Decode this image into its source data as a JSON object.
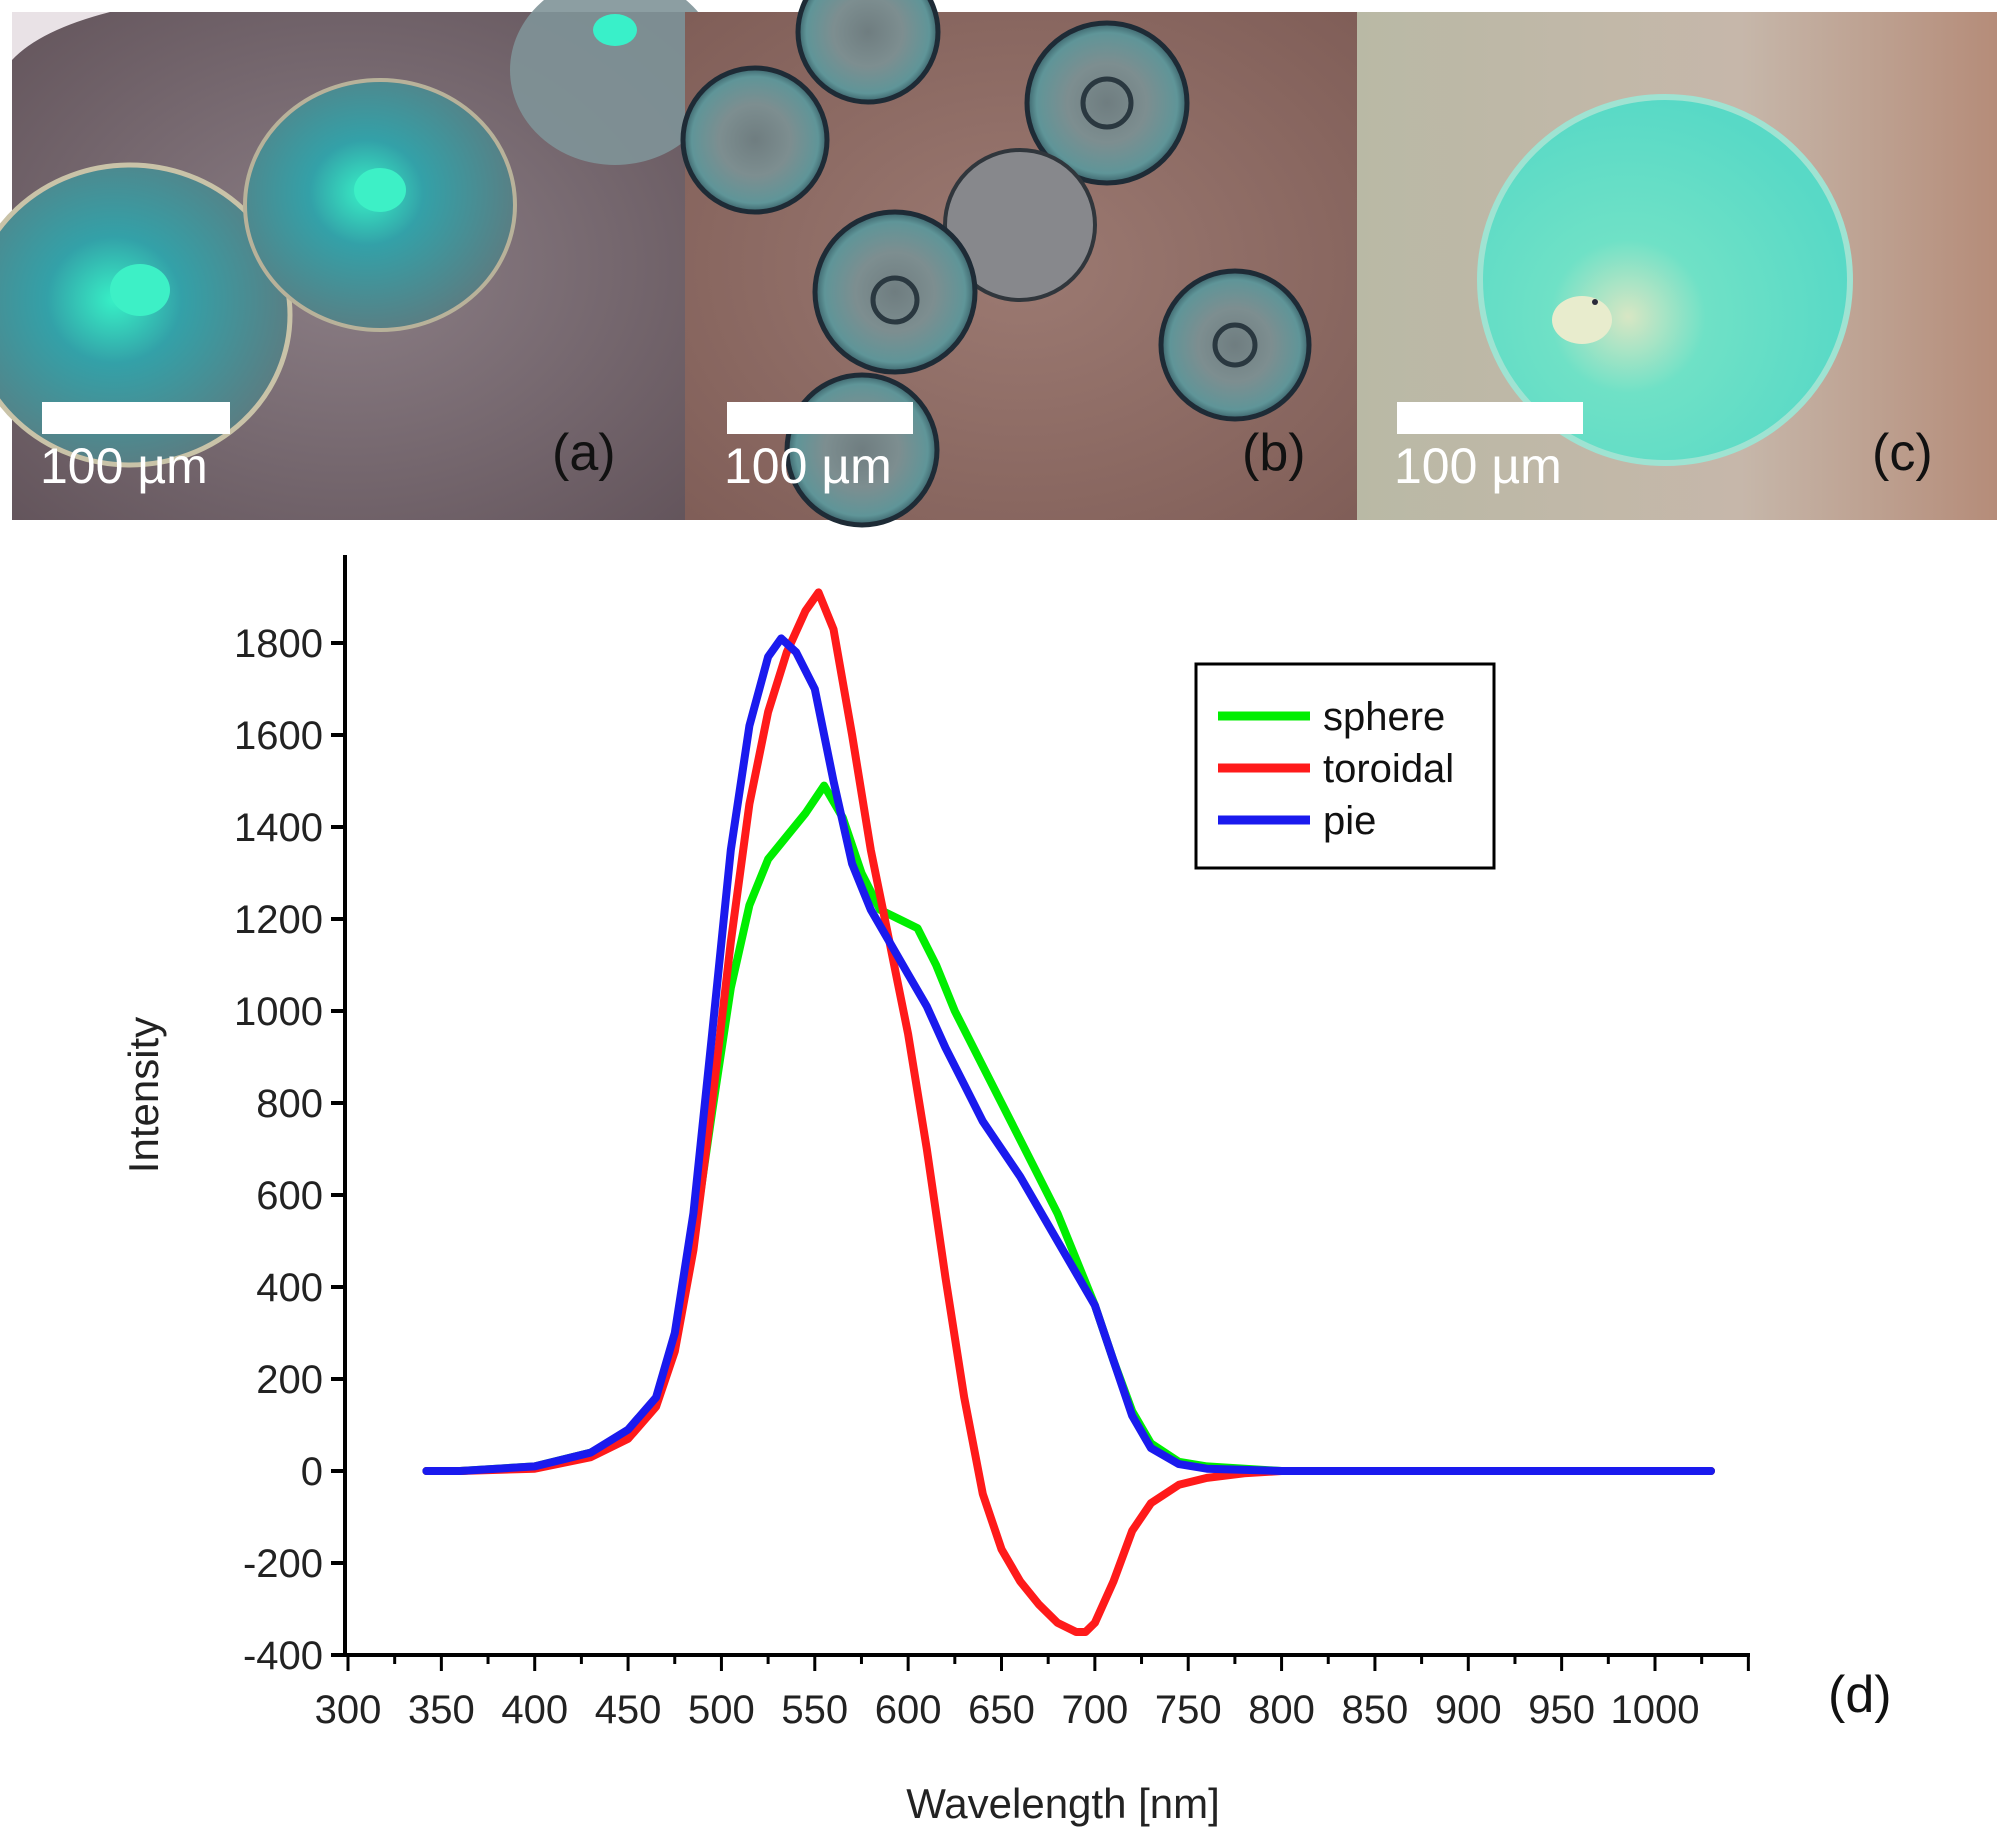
{
  "panels": [
    {
      "id": "a",
      "label": "(a)",
      "scale_label": "100 µm"
    },
    {
      "id": "b",
      "label": "(b)",
      "scale_label": "100 µm"
    },
    {
      "id": "c",
      "label": "(c)",
      "scale_label": "100 µm"
    }
  ],
  "chart_panel_label": "(d)",
  "chart_data": {
    "type": "line",
    "title": "",
    "xlabel": "Wavelength [nm]",
    "ylabel": "Intensity",
    "xlim": [
      300,
      1050
    ],
    "ylim": [
      -400,
      1900
    ],
    "xticks": [
      300,
      350,
      400,
      450,
      500,
      550,
      600,
      650,
      700,
      750,
      800,
      850,
      900,
      950,
      1000
    ],
    "yticks": [
      -400,
      -200,
      0,
      200,
      400,
      600,
      800,
      1000,
      1200,
      1400,
      1600,
      1800
    ],
    "grid": false,
    "legend_position": "top-right",
    "series": [
      {
        "name": "sphere",
        "color": "#00ee00",
        "x": [
          342,
          360,
          400,
          430,
          450,
          465,
          475,
          485,
          495,
          505,
          515,
          525,
          535,
          545,
          555,
          565,
          575,
          585,
          595,
          605,
          615,
          625,
          640,
          660,
          680,
          700,
          710,
          720,
          730,
          745,
          760,
          800,
          900,
          1030
        ],
        "y": [
          0,
          0,
          10,
          40,
          80,
          150,
          280,
          500,
          780,
          1050,
          1230,
          1330,
          1380,
          1430,
          1490,
          1420,
          1300,
          1220,
          1200,
          1180,
          1100,
          1000,
          880,
          720,
          560,
          360,
          240,
          130,
          60,
          20,
          10,
          0,
          0,
          0
        ]
      },
      {
        "name": "toroidal",
        "color": "#ff1a1a",
        "x": [
          342,
          360,
          400,
          430,
          450,
          465,
          475,
          485,
          495,
          505,
          515,
          525,
          535,
          545,
          552,
          560,
          570,
          580,
          590,
          600,
          610,
          620,
          630,
          640,
          650,
          660,
          670,
          680,
          690,
          695,
          700,
          710,
          720,
          730,
          745,
          760,
          780,
          800,
          900,
          1030
        ],
        "y": [
          0,
          0,
          5,
          30,
          70,
          140,
          260,
          480,
          800,
          1150,
          1450,
          1650,
          1780,
          1870,
          1910,
          1830,
          1600,
          1350,
          1150,
          950,
          700,
          420,
          160,
          -50,
          -170,
          -240,
          -290,
          -330,
          -350,
          -350,
          -330,
          -240,
          -130,
          -70,
          -30,
          -15,
          -5,
          0,
          0,
          0
        ]
      },
      {
        "name": "pie",
        "color": "#1a1aee",
        "x": [
          342,
          360,
          400,
          430,
          450,
          465,
          475,
          485,
          495,
          505,
          515,
          525,
          532,
          540,
          550,
          560,
          570,
          580,
          590,
          600,
          610,
          620,
          630,
          640,
          660,
          680,
          700,
          710,
          720,
          730,
          745,
          760,
          800,
          900,
          1030
        ],
        "y": [
          0,
          0,
          10,
          40,
          90,
          160,
          300,
          560,
          950,
          1350,
          1620,
          1770,
          1810,
          1780,
          1700,
          1500,
          1320,
          1220,
          1150,
          1080,
          1010,
          920,
          840,
          760,
          640,
          500,
          360,
          240,
          120,
          50,
          15,
          5,
          0,
          0,
          0
        ]
      }
    ]
  },
  "colors": {
    "axis": "#000000",
    "sphere": "#00ee00",
    "toroidal": "#ff1a1a",
    "pie": "#1a1aee"
  }
}
